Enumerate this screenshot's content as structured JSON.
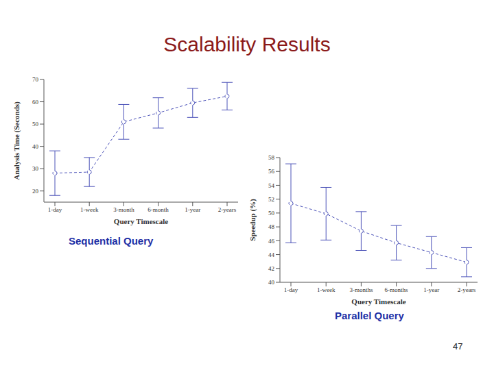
{
  "title": "Scalability Results",
  "page": "47",
  "chart_data": [
    {
      "type": "line",
      "caption": "Sequential Query",
      "x_label": "Query Timescale",
      "y_label": "Analysis Time (Seconds)",
      "categories": [
        "1-day",
        "1-week",
        "3-month",
        "6-month",
        "1-year",
        "2-years"
      ],
      "values": [
        28,
        28.5,
        51,
        55,
        59.5,
        62.5
      ],
      "errors": [
        10,
        6.5,
        7.8,
        6.8,
        6.5,
        6.2
      ],
      "color": "#4b52b8",
      "marker": "circle",
      "line_style": "dashed",
      "grid": false,
      "ylim": [
        15,
        70
      ],
      "yticks": [
        20,
        30,
        40,
        50,
        60,
        70
      ]
    },
    {
      "type": "line",
      "caption": "Parallel Query",
      "x_label": "Query Timescale",
      "y_label": "Speedup (%)",
      "categories": [
        "1-day",
        "1-week",
        "3-months",
        "6-months",
        "1-year",
        "2-years"
      ],
      "values": [
        51.4,
        49.9,
        47.4,
        45.7,
        44.3,
        42.9
      ],
      "errors": [
        5.7,
        3.8,
        2.8,
        2.5,
        2.3,
        2.1
      ],
      "color": "#4b52b8",
      "marker": "circle",
      "line_style": "dashed",
      "grid": false,
      "ylim": [
        40,
        58
      ],
      "yticks": [
        40,
        42,
        44,
        46,
        48,
        50,
        52,
        54,
        56,
        58
      ]
    }
  ]
}
